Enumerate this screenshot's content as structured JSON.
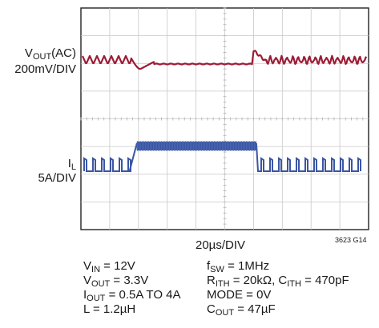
{
  "chart_data": {
    "type": "line",
    "grid": true,
    "xlabel": "20µs/DIV",
    "figure_id": "3623 G14",
    "series": [
      {
        "label_main": "V",
        "label_sub": "OUT",
        "label_tail": "(AC)",
        "scale": "200mV/DIV",
        "color": "#9c1c36",
        "description_points": [
          {
            "t_div": 0.0,
            "state": "ripple"
          },
          {
            "t_div": 1.7,
            "state": "undershoot"
          },
          {
            "t_div": 2.0,
            "state": "flat"
          },
          {
            "t_div": 6.0,
            "state": "overshoot"
          },
          {
            "t_div": 6.2,
            "state": "ripple"
          },
          {
            "t_div": 10.0,
            "state": "end"
          }
        ]
      },
      {
        "label_main": "I",
        "label_sub": "L",
        "label_tail": "",
        "scale": "5A/DIV",
        "color": "#3a55a3",
        "load_step_start_div": 1.8,
        "load_step_end_div": 6.1,
        "i_low_A": 0.5,
        "i_high_A": 4
      }
    ]
  },
  "conditions": {
    "vin": {
      "main": "V",
      "sub": "IN",
      "tail": " = 12V"
    },
    "vout": {
      "main": "V",
      "sub": "OUT",
      "tail": " = 3.3V"
    },
    "iout": {
      "main": "I",
      "sub": "OUT",
      "tail": " = 0.5A TO 4A"
    },
    "l": {
      "main": "L = 1.2µH"
    },
    "fsw": {
      "main": "f",
      "sub": "SW",
      "tail": " = 1MHz"
    },
    "rith": {
      "main": "R",
      "sub": "ITH",
      "tail": " = 20kΩ, C",
      "sub2": "ITH",
      "tail2": " = 470pF"
    },
    "mode": {
      "main": "MODE = 0V"
    },
    "cout": {
      "main": "C",
      "sub": "OUT",
      "tail": " = 47µF"
    }
  }
}
